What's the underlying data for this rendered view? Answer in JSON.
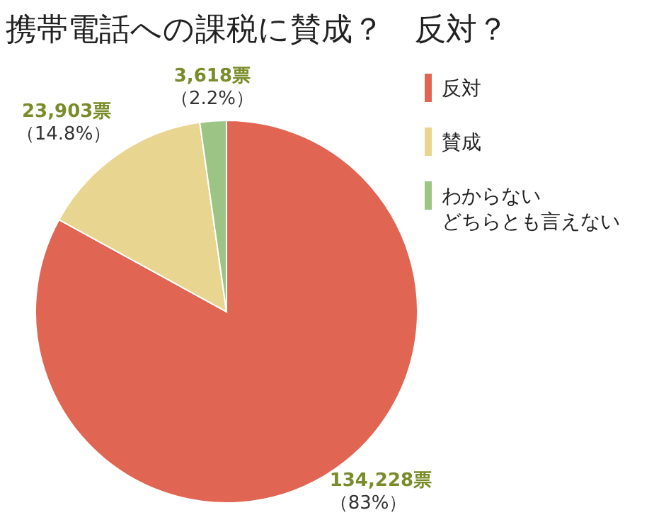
{
  "chart_data": {
    "type": "pie",
    "title": "携帯電話への課税に賛成？　反対？",
    "categories": [
      "反対",
      "賛成",
      "わからないどちらとも言えない"
    ],
    "values": [
      134228,
      23903,
      3618
    ],
    "colors": [
      "#e06552",
      "#e8d590",
      "#9cc485"
    ],
    "value_labels": [
      "134,228票（83%）",
      "23,903票（14.8%）",
      "3,618票（2.2%）"
    ],
    "legend": "top right"
  }
}
